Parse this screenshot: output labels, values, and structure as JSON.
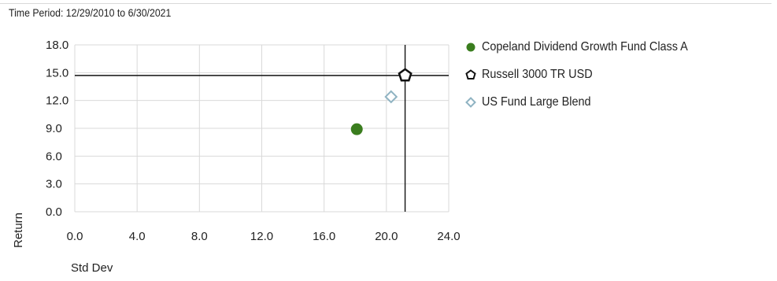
{
  "time_period": "Time Period: 12/29/2010 to 6/30/2021",
  "colors": {
    "fund": "#3a7d1e",
    "benchmark": "#111111",
    "category": "#8fb3c2",
    "grid": "#d9d9d9",
    "axis": "#111111"
  },
  "chart_data": {
    "type": "scatter",
    "title": "",
    "xlabel": "Std Dev",
    "ylabel": "Return",
    "xlim": [
      0,
      24
    ],
    "ylim": [
      0,
      18
    ],
    "x_ticks": [
      "0.0",
      "4.0",
      "8.0",
      "12.0",
      "16.0",
      "20.0",
      "24.0"
    ],
    "y_ticks": [
      "0.0",
      "3.0",
      "6.0",
      "9.0",
      "12.0",
      "15.0",
      "18.0"
    ],
    "grid": true,
    "legend_position": "right",
    "crosshair": {
      "x": 21.2,
      "y": 14.7
    },
    "series": [
      {
        "name": "Copeland Dividend Growth Fund Class A",
        "marker": "circle",
        "color": "#3a7d1e",
        "x": 18.1,
        "y": 8.9
      },
      {
        "name": "Russell 3000 TR USD",
        "marker": "pentagon",
        "color": "#111111",
        "x": 21.2,
        "y": 14.7
      },
      {
        "name": "US Fund Large Blend",
        "marker": "diamond",
        "color": "#8fb3c2",
        "x": 20.3,
        "y": 12.4
      }
    ]
  }
}
